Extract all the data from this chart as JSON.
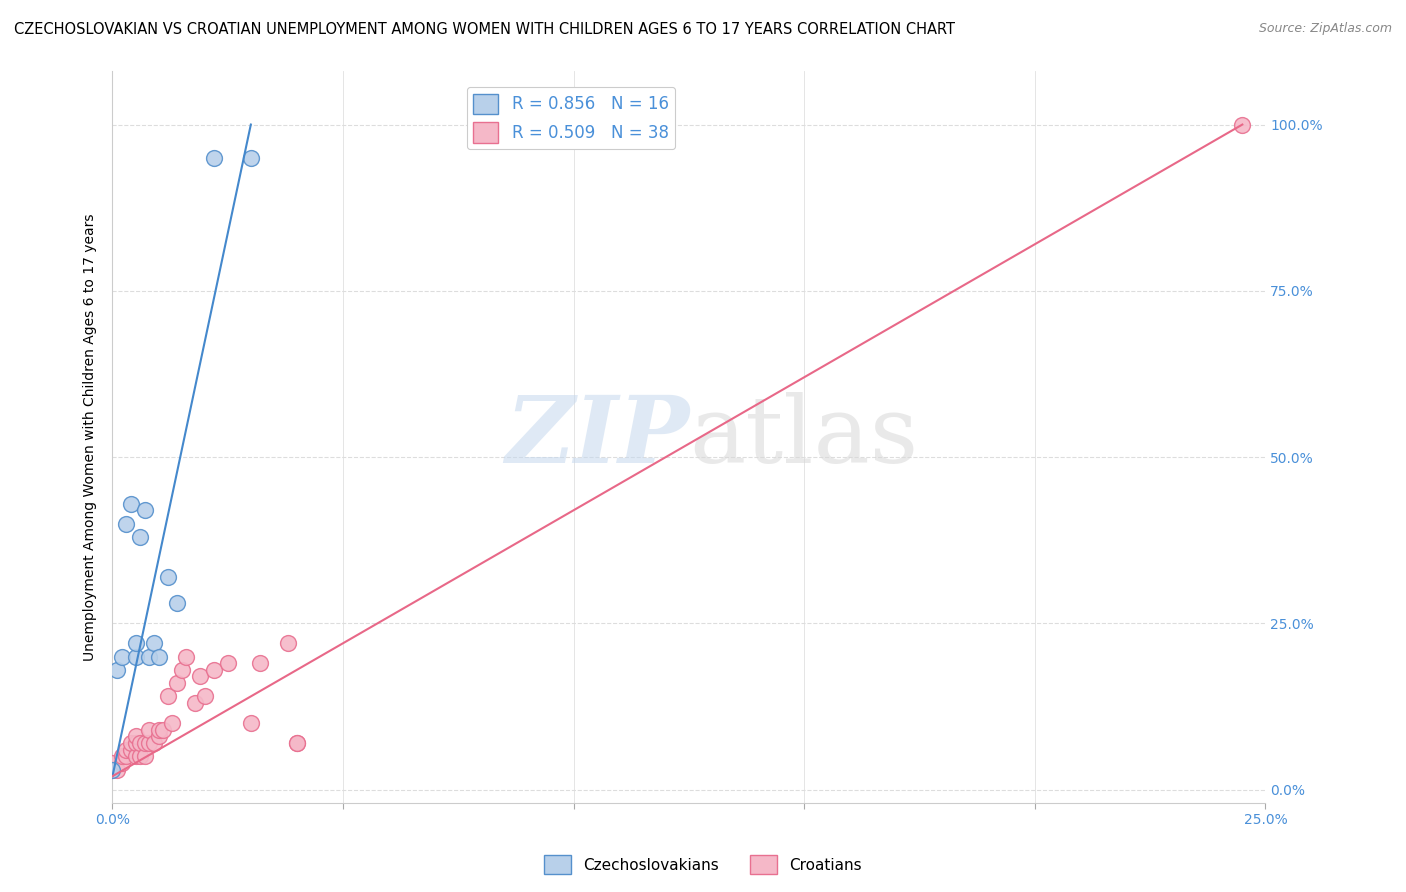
{
  "title": "CZECHOSLOVAKIAN VS CROATIAN UNEMPLOYMENT AMONG WOMEN WITH CHILDREN AGES 6 TO 17 YEARS CORRELATION CHART",
  "source": "Source: ZipAtlas.com",
  "ylabel": "Unemployment Among Women with Children Ages 6 to 17 years",
  "ylabel_tick_vals": [
    0.0,
    0.25,
    0.5,
    0.75,
    1.0
  ],
  "xlim": [
    0.0,
    0.25
  ],
  "ylim": [
    -0.02,
    1.08
  ],
  "watermark_zip": "ZIP",
  "watermark_atlas": "atlas",
  "legend_r1": "R = 0.856   N = 16",
  "legend_r2": "R = 0.509   N = 38",
  "blue_fill": "#b8d0ea",
  "pink_fill": "#f5b8c8",
  "blue_edge": "#5590cc",
  "pink_edge": "#e87090",
  "blue_line": "#4488cc",
  "pink_line": "#e86888",
  "czechs_x": [
    0.0,
    0.001,
    0.002,
    0.003,
    0.004,
    0.005,
    0.005,
    0.006,
    0.007,
    0.008,
    0.009,
    0.01,
    0.012,
    0.014,
    0.022,
    0.03
  ],
  "czechs_y": [
    0.03,
    0.18,
    0.2,
    0.4,
    0.43,
    0.2,
    0.22,
    0.38,
    0.42,
    0.2,
    0.22,
    0.2,
    0.32,
    0.28,
    0.95,
    0.95
  ],
  "croatians_x": [
    0.0,
    0.0,
    0.001,
    0.002,
    0.002,
    0.003,
    0.003,
    0.004,
    0.004,
    0.005,
    0.005,
    0.005,
    0.006,
    0.006,
    0.007,
    0.007,
    0.008,
    0.008,
    0.009,
    0.01,
    0.01,
    0.011,
    0.012,
    0.013,
    0.014,
    0.015,
    0.016,
    0.018,
    0.019,
    0.02,
    0.022,
    0.025,
    0.03,
    0.032,
    0.038,
    0.04,
    0.04,
    0.245
  ],
  "croatians_y": [
    0.03,
    0.04,
    0.03,
    0.04,
    0.05,
    0.05,
    0.06,
    0.06,
    0.07,
    0.05,
    0.07,
    0.08,
    0.05,
    0.07,
    0.05,
    0.07,
    0.07,
    0.09,
    0.07,
    0.08,
    0.09,
    0.09,
    0.14,
    0.1,
    0.16,
    0.18,
    0.2,
    0.13,
    0.17,
    0.14,
    0.18,
    0.19,
    0.1,
    0.19,
    0.22,
    0.07,
    0.07,
    1.0
  ],
  "czech_line_x": [
    0.0,
    0.03
  ],
  "czech_line_y": [
    0.02,
    1.0
  ],
  "croatian_line_x": [
    0.0,
    0.245
  ],
  "croatian_line_y": [
    0.02,
    1.0
  ]
}
